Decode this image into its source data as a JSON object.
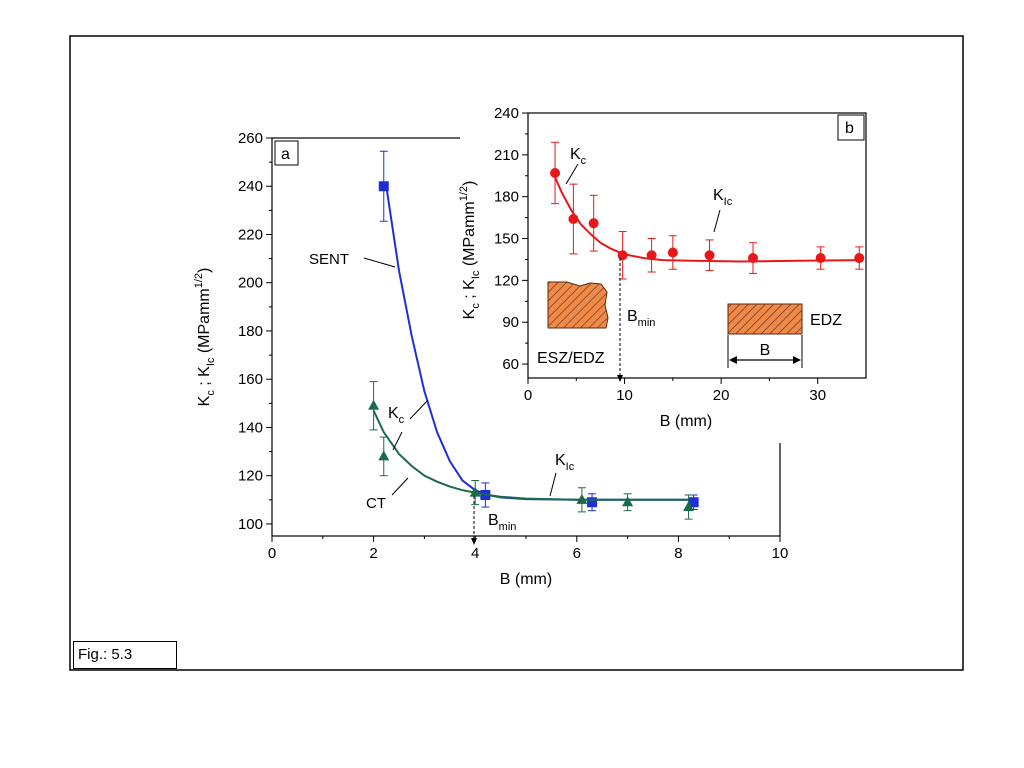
{
  "figure_label": "Fig.: 5.3",
  "colors": {
    "sent": "#1f2fd6",
    "ct": "#1a6b4a",
    "inset": "#e8181a",
    "hatch": "#f08a4b"
  },
  "chart_data": [
    {
      "id": "a",
      "panel_label": "a",
      "type": "scatter",
      "xlabel": "B (mm)",
      "ylabel_parts": [
        "K",
        "c",
        " ; K",
        "Ic",
        " (MPamm",
        "1/2",
        ")"
      ],
      "xlim": [
        0,
        10
      ],
      "ylim": [
        95,
        260
      ],
      "xticks": [
        0,
        2,
        4,
        6,
        8,
        10
      ],
      "xtick_labels": [
        "0",
        "2",
        "4",
        "6",
        "8",
        "10"
      ],
      "yticks": [
        100,
        120,
        140,
        160,
        180,
        200,
        220,
        240,
        260
      ],
      "ytick_labels": [
        "100",
        "120",
        "140",
        "160",
        "180",
        "200",
        "220",
        "240",
        "260"
      ],
      "series": [
        {
          "key": "sent",
          "marker": "square",
          "points": [
            {
              "x": 2.2,
              "y": 240,
              "err": 14.5
            },
            {
              "x": 4.2,
              "y": 112,
              "err": 5
            },
            {
              "x": 6.3,
              "y": 109,
              "err": 3.5
            },
            {
              "x": 8.3,
              "y": 109,
              "err": 3
            }
          ],
          "curve": [
            [
              2.25,
              240
            ],
            [
              2.5,
              205
            ],
            [
              2.75,
              178
            ],
            [
              3.0,
              155
            ],
            [
              3.25,
              138
            ],
            [
              3.5,
              126
            ],
            [
              3.75,
              118
            ],
            [
              4.0,
              114
            ],
            [
              4.25,
              112
            ],
            [
              4.5,
              111
            ],
            [
              5,
              110.3
            ],
            [
              6,
              110
            ],
            [
              8,
              110
            ],
            [
              8.3,
              110
            ]
          ]
        },
        {
          "key": "ct",
          "marker": "triangle",
          "points": [
            {
              "x": 2.0,
              "y": 149,
              "err": 10
            },
            {
              "x": 2.2,
              "y": 128,
              "err": 8
            },
            {
              "x": 4.0,
              "y": 113,
              "err": 5
            },
            {
              "x": 6.1,
              "y": 110,
              "err": 5
            },
            {
              "x": 7.0,
              "y": 109,
              "err": 3.5
            },
            {
              "x": 8.2,
              "y": 107,
              "err": 5
            }
          ],
          "curve": [
            [
              2.0,
              147
            ],
            [
              2.2,
              138
            ],
            [
              2.5,
              129
            ],
            [
              2.75,
              124
            ],
            [
              3.0,
              120
            ],
            [
              3.25,
              117.5
            ],
            [
              3.5,
              115.5
            ],
            [
              3.75,
              114
            ],
            [
              4.0,
              113
            ],
            [
              4.25,
              112
            ],
            [
              4.5,
              111.3
            ],
            [
              5,
              110.5
            ],
            [
              6,
              110
            ],
            [
              8.2,
              110
            ]
          ]
        }
      ],
      "annotations": [
        {
          "text": "SENT"
        },
        {
          "text": "CT"
        },
        {
          "main": "K",
          "sub": "c"
        },
        {
          "main": "K",
          "sub": "Ic"
        },
        {
          "main": "B",
          "sub": "min"
        }
      ],
      "bmin_x": 4
    },
    {
      "id": "b",
      "panel_label": "b",
      "type": "scatter",
      "xlabel": "B (mm)",
      "ylabel_parts": [
        "K",
        "c",
        " ; K",
        "Ic",
        " (MPamm",
        "1/2",
        ")"
      ],
      "xlim": [
        0,
        35
      ],
      "ylim": [
        50,
        240
      ],
      "xticks": [
        0,
        10,
        20,
        30
      ],
      "xtick_labels": [
        "0",
        "10",
        "20",
        "30"
      ],
      "yticks": [
        60,
        90,
        120,
        150,
        180,
        210,
        240
      ],
      "ytick_labels": [
        "60",
        "90",
        "120",
        "150",
        "180",
        "210",
        "240"
      ],
      "series": [
        {
          "key": "inset",
          "marker": "circle",
          "points": [
            {
              "x": 2.8,
              "y": 197,
              "err": 22
            },
            {
              "x": 4.7,
              "y": 164,
              "err": 25
            },
            {
              "x": 6.8,
              "y": 161,
              "err": 20
            },
            {
              "x": 9.8,
              "y": 138,
              "err": 17
            },
            {
              "x": 12.8,
              "y": 138,
              "err": 12
            },
            {
              "x": 15.0,
              "y": 140,
              "err": 12
            },
            {
              "x": 18.8,
              "y": 138,
              "err": 11
            },
            {
              "x": 23.3,
              "y": 136,
              "err": 11
            },
            {
              "x": 30.3,
              "y": 136,
              "err": 8
            },
            {
              "x": 34.3,
              "y": 136,
              "err": 8
            }
          ],
          "curve": [
            [
              2.8,
              194
            ],
            [
              3.5,
              183
            ],
            [
              4.5,
              170
            ],
            [
              5.5,
              160
            ],
            [
              6.5,
              153
            ],
            [
              7.5,
              147
            ],
            [
              8.5,
              143
            ],
            [
              9.5,
              140
            ],
            [
              10.5,
              138
            ],
            [
              12,
              136
            ],
            [
              14,
              134.5
            ],
            [
              17,
              134
            ],
            [
              22,
              133.5
            ],
            [
              28,
              134
            ],
            [
              34.3,
              134.5
            ]
          ]
        }
      ],
      "annotations": [
        {
          "main": "K",
          "sub": "c"
        },
        {
          "main": "K",
          "sub": "Ic"
        },
        {
          "main": "B",
          "sub": "min"
        },
        {
          "text": "ESZ/EDZ"
        },
        {
          "text": "EDZ"
        },
        {
          "text": "B"
        }
      ],
      "bmin_x": 10
    }
  ]
}
